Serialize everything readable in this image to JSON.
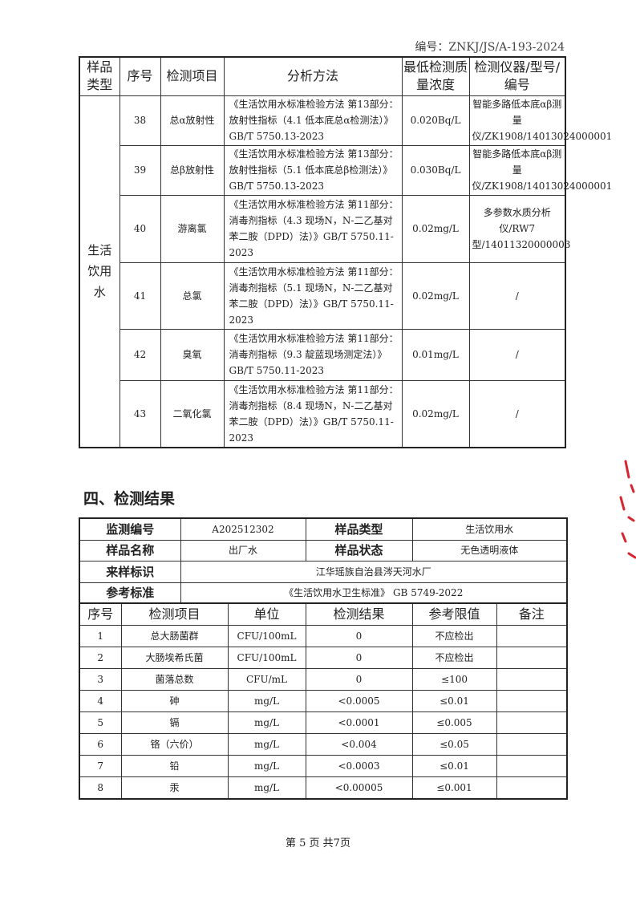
{
  "doc_number": "编号：ZNKJ/JS/A-193-2024",
  "methods_table": {
    "headers": [
      "样品类型",
      "序号",
      "检测项目",
      "分析方法",
      "最低检测质量浓度",
      "检测仪器/型号/编号"
    ],
    "sample_type": "生活饮用水",
    "rows": [
      {
        "no": "38",
        "item": "总α放射性",
        "method": "《生活饮用水标准检验方法 第13部分：放射性指标（4.1 低本底总α检测法）》GB/T 5750.13-2023",
        "limit": "0.020Bq/L",
        "instrument": "智能多路低本底αβ测量仪/ZK1908/14013024000001"
      },
      {
        "no": "39",
        "item": "总β放射性",
        "method": "《生活饮用水标准检验方法 第13部分：放射性指标（5.1 低本底总β检测法）》GB/T 5750.13-2023",
        "limit": "0.030Bq/L",
        "instrument": "智能多路低本底αβ测量仪/ZK1908/14013024000001"
      },
      {
        "no": "40",
        "item": "游离氯",
        "method": "《生活饮用水标准检验方法 第11部分：消毒剂指标（4.3 现场N，N-二乙基对苯二胺（DPD）法）》GB/T 5750.11-2023",
        "limit": "0.02mg/L",
        "instrument": "多参数水质分析仪/RW7型/14011320000003"
      },
      {
        "no": "41",
        "item": "总氯",
        "method": "《生活饮用水标准检验方法 第11部分：消毒剂指标（5.1 现场N，N-二乙基对苯二胺（DPD）法）》GB/T 5750.11-2023",
        "limit": "0.02mg/L",
        "instrument": "/"
      },
      {
        "no": "42",
        "item": "臭氧",
        "method": "《生活饮用水标准检验方法 第11部分：消毒剂指标（9.3 靛蓝现场测定法）》GB/T 5750.11-2023",
        "limit": "0.01mg/L",
        "instrument": "/"
      },
      {
        "no": "43",
        "item": "二氧化氯",
        "method": "《生活饮用水标准检验方法 第11部分：消毒剂指标（8.4 现场N，N-二乙基对苯二胺（DPD）法）》GB/T 5750.11-2023",
        "limit": "0.02mg/L",
        "instrument": "/"
      }
    ]
  },
  "section_title": "四、检测结果",
  "results_info": {
    "monitor_no_label": "监测编号",
    "monitor_no": "A202512302",
    "sample_type_label": "样品类型",
    "sample_type": "生活饮用水",
    "sample_name_label": "样品名称",
    "sample_name": "出厂水",
    "sample_state_label": "样品状态",
    "sample_state": "无色透明液体",
    "source_label": "来样标识",
    "source": "江华瑶族自治县涔天河水厂",
    "standard_label": "参考标准",
    "standard": "《生活饮用水卫生标准》 GB 5749-2022"
  },
  "results_table": {
    "headers": [
      "序号",
      "检测项目",
      "单位",
      "检测结果",
      "参考限值",
      "备注"
    ],
    "rows": [
      [
        "1",
        "总大肠菌群",
        "CFU/100mL",
        "0",
        "不应检出",
        ""
      ],
      [
        "2",
        "大肠埃希氏菌",
        "CFU/100mL",
        "0",
        "不应检出",
        ""
      ],
      [
        "3",
        "菌落总数",
        "CFU/mL",
        "0",
        "≤100",
        ""
      ],
      [
        "4",
        "砷",
        "mg/L",
        "<0.0005",
        "≤0.01",
        ""
      ],
      [
        "5",
        "镉",
        "mg/L",
        "<0.0001",
        "≤0.005",
        ""
      ],
      [
        "6",
        "铬（六价）",
        "mg/L",
        "<0.004",
        "≤0.05",
        ""
      ],
      [
        "7",
        "铅",
        "mg/L",
        "<0.0003",
        "≤0.01",
        ""
      ],
      [
        "8",
        "汞",
        "mg/L",
        "<0.00005",
        "≤0.001",
        ""
      ]
    ]
  },
  "footer": "第 5 页 共7页",
  "stamp_color": "#d8242f"
}
